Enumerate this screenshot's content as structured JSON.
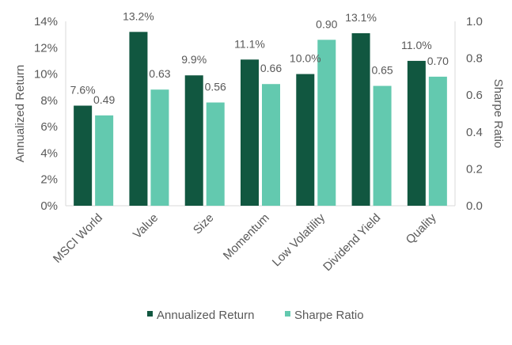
{
  "chart_data": {
    "type": "bar",
    "title": "",
    "categories": [
      "MSCI World",
      "Value",
      "Size",
      "Momentum",
      "Low Volatility",
      "Dividend Yield",
      "Quality"
    ],
    "series": [
      {
        "name": "Annualized Return",
        "axis": "left",
        "color": "#115740",
        "values": [
          7.6,
          13.2,
          9.9,
          11.1,
          10.0,
          13.1,
          11.0
        ],
        "labels": [
          "7.6%",
          "13.2%",
          "9.9%",
          "11.1%",
          "10.0%",
          "13.1%",
          "11.0%"
        ]
      },
      {
        "name": "Sharpe Ratio",
        "axis": "right",
        "color": "#63c9af",
        "values": [
          0.49,
          0.63,
          0.56,
          0.66,
          0.9,
          0.65,
          0.7
        ],
        "labels": [
          "0.49",
          "0.63",
          "0.56",
          "0.66",
          "0.90",
          "0.65",
          "0.70"
        ]
      }
    ],
    "y_left": {
      "label": "Annualized Return",
      "range": [
        0,
        14
      ],
      "ticks": [
        0,
        2,
        4,
        6,
        8,
        10,
        12,
        14
      ],
      "tick_labels": [
        "0%",
        "2%",
        "4%",
        "6%",
        "8%",
        "10%",
        "12%",
        "14%"
      ]
    },
    "y_right": {
      "label": "Sharpe Ratio",
      "range": [
        0,
        1.0
      ],
      "ticks": [
        0,
        0.2,
        0.4,
        0.6,
        0.8,
        1.0
      ],
      "tick_labels": [
        "0.0",
        "0.2",
        "0.4",
        "0.6",
        "0.8",
        "1.0"
      ]
    },
    "grid": false,
    "legend": {
      "position": "bottom",
      "entries": [
        "Annualized Return",
        "Sharpe Ratio"
      ]
    }
  },
  "colors": {
    "axis_line": "#d9d9d9",
    "text": "#595959"
  }
}
